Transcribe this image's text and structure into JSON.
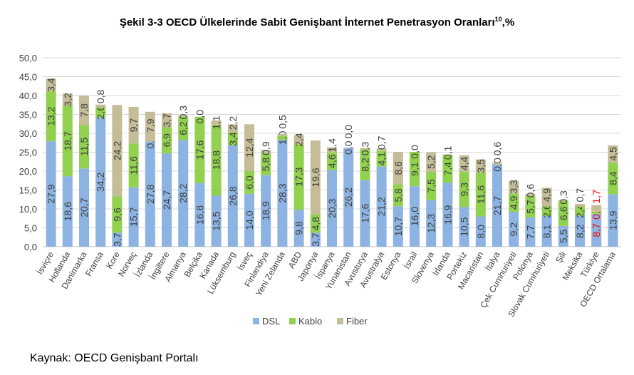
{
  "title": "Şekil 3-3 OECD Ülkelerinde Sabit Genişbant İnternet Penetrasyon Oranları",
  "title_sup": "10",
  "title_suffix": ",%",
  "source": "Kaynak: OECD Genişbant Portalı",
  "chart_data": {
    "type": "bar",
    "stacked": true,
    "ylim": [
      0,
      50
    ],
    "yticks": [
      "0,0",
      "5,0",
      "10,0",
      "15,0",
      "20,0",
      "25,0",
      "30,0",
      "35,0",
      "40,0",
      "45,0",
      "50,0"
    ],
    "grid": true,
    "legend_position": "bottom",
    "categories": [
      "İsviçre",
      "Hollanda",
      "Danimarka",
      "Fransa",
      "Kore",
      "Norveç",
      "İzlanda",
      "İngiltere",
      "Almanya",
      "Belçika",
      "Kanada",
      "Lüksemburg",
      "İsveç",
      "Finlandiya",
      "Yeni Zelanda",
      "ABD",
      "Japonya",
      "İspanya",
      "Yunanistan",
      "Avusturya",
      "Avustralya",
      "Estonya",
      "İsrail",
      "Slovenya",
      "İrlanda",
      "Portekiz",
      "Macaristan",
      "İtalya",
      "Çek Cumhuriyeti",
      "Polonya",
      "Slovak Cumhuriyeti",
      "Şili",
      "Meksika",
      "Türkiye",
      "OECD Ortalama"
    ],
    "highlight_category": "Türkiye",
    "highlight_color": "#ff0000",
    "series": [
      {
        "name": "DSL",
        "color": "#8db3e2",
        "values": [
          27.9,
          18.6,
          20.7,
          34.2,
          3.7,
          15.7,
          27.8,
          24.7,
          28.2,
          16.8,
          13.5,
          26.8,
          14.0,
          18.9,
          28.3,
          9.8,
          3.7,
          20.3,
          26.2,
          17.6,
          21.2,
          10.7,
          16.0,
          12.3,
          16.9,
          10.5,
          8.0,
          21.7,
          9.2,
          7.7,
          8.1,
          5.5,
          8.2,
          8.7,
          13.9
        ]
      },
      {
        "name": "Kablo",
        "color": "#92d050",
        "values": [
          13.2,
          18.7,
          11.5,
          2.6,
          9.6,
          11.6,
          0.0,
          6.9,
          6.2,
          17.6,
          18.8,
          3.4,
          6.0,
          5.8,
          1.0,
          17.3,
          4.8,
          4.6,
          0.0,
          8.2,
          4.1,
          5.8,
          9.1,
          7.5,
          7.4,
          9.3,
          11.6,
          0.0,
          4.9,
          5.7,
          2.6,
          6.6,
          2.4,
          0.6,
          8.4
        ]
      },
      {
        "name": "Fiber",
        "color": "#c4bd97",
        "values": [
          3.4,
          3.2,
          7.8,
          0.8,
          24.2,
          9.7,
          7.9,
          3.7,
          0.3,
          0.0,
          1.1,
          2.2,
          12.4,
          0.9,
          0.5,
          2.4,
          19.6,
          1.4,
          0.0,
          0.3,
          0.7,
          8.6,
          0.0,
          5.2,
          0.1,
          4.4,
          3.5,
          0.6,
          3.3,
          0.6,
          4.9,
          0.3,
          0.7,
          1.7,
          4.5
        ]
      }
    ]
  }
}
